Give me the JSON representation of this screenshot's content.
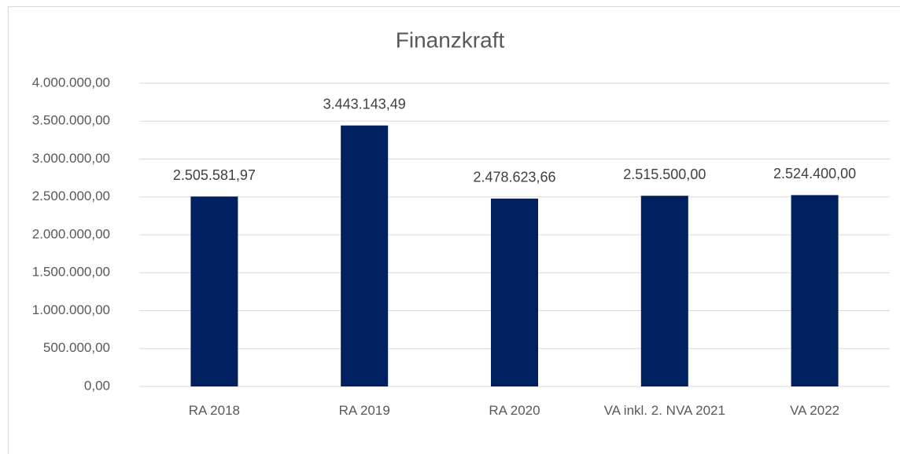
{
  "chart_data": {
    "type": "bar",
    "title": "Finanzkraft",
    "categories": [
      "RA 2018",
      "RA 2019",
      "RA 2020",
      "VA inkl. 2. NVA 2021",
      "VA 2022"
    ],
    "values": [
      2505581.97,
      3443143.49,
      2478623.66,
      2515500.0,
      2524400.0
    ],
    "value_labels": [
      "2.505.581,97",
      "3.443.143,49",
      "2.478.623,66",
      "2.515.500,00",
      "2.524.400,00"
    ],
    "color": "#002060",
    "ylim": [
      0,
      4000000
    ],
    "yticks": [
      {
        "value": 0,
        "label": "0,00"
      },
      {
        "value": 500000,
        "label": "500.000,00"
      },
      {
        "value": 1000000,
        "label": "1.000.000,00"
      },
      {
        "value": 1500000,
        "label": "1.500.000,00"
      },
      {
        "value": 2000000,
        "label": "2.000.000,00"
      },
      {
        "value": 2500000,
        "label": "2.500.000,00"
      },
      {
        "value": 3000000,
        "label": "3.000.000,00"
      },
      {
        "value": 3500000,
        "label": "3.500.000,00"
      },
      {
        "value": 4000000,
        "label": "4.000.000,00"
      }
    ],
    "grid": true
  }
}
